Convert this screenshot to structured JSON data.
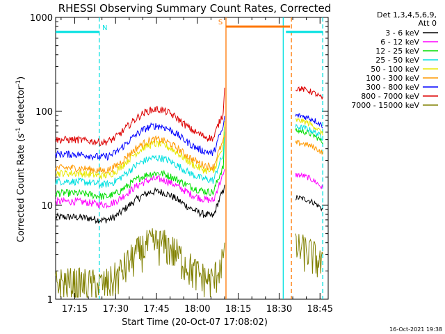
{
  "chart_data": {
    "type": "line",
    "title": "RHESSI Observing Summary Count Rates, Corrected",
    "xlabel": "Start Time (20-Oct-07 17:08:02)",
    "ylabel_main": "Corrected Count Rate (s",
    "ylabel_sup1": "-1",
    "ylabel_mid": " detector",
    "ylabel_sup2": "-1",
    "ylabel_end": ")",
    "yscale": "log",
    "ylim": [
      1,
      1000
    ],
    "xlim_min": [
      0,
      100
    ],
    "x_ticks": [
      {
        "label": "17:15",
        "min": 7
      },
      {
        "label": "17:30",
        "min": 22
      },
      {
        "label": "17:45",
        "min": 37
      },
      {
        "label": "18:00",
        "min": 52
      },
      {
        "label": "18:15",
        "min": 67
      },
      {
        "label": "18:30",
        "min": 82
      },
      {
        "label": "18:45",
        "min": 97
      }
    ],
    "y_ticks": [
      {
        "label": "1",
        "value": 1
      },
      {
        "label": "10",
        "value": 10
      },
      {
        "label": "100",
        "value": 100
      },
      {
        "label": "1000",
        "value": 1000
      }
    ],
    "legend_header": [
      "Det 1,3,4,5,6,9,",
      "Att 0"
    ],
    "legend_position": "right",
    "series": [
      {
        "name": "3 - 6 keV",
        "color": "#000000",
        "base": 7.5,
        "peak": 14,
        "end": 12,
        "g1": 12,
        "g2": 9
      },
      {
        "name": "6 - 12 keV",
        "color": "#ff00ff",
        "base": 11,
        "peak": 19,
        "end": 20,
        "g1": 21,
        "g2": 15
      },
      {
        "name": "12 - 25 keV",
        "color": "#00dd00",
        "base": 13.5,
        "peak": 22,
        "end": 58,
        "g1": 62,
        "g2": 47
      },
      {
        "name": "25 - 50 keV",
        "color": "#00e0e0",
        "base": 18,
        "peak": 32,
        "end": 65,
        "g1": 68,
        "g2": 52
      },
      {
        "name": "50 - 100 keV",
        "color": "#e8e800",
        "base": 22,
        "peak": 45,
        "end": 75,
        "g1": 80,
        "g2": 57
      },
      {
        "name": "100 - 300 keV",
        "color": "#ff9900",
        "base": 25,
        "peak": 50,
        "end": 43,
        "g1": 46,
        "g2": 36
      },
      {
        "name": "300 - 800 keV",
        "color": "#0000ff",
        "base": 35,
        "peak": 70,
        "end": 85,
        "g1": 90,
        "g2": 70
      },
      {
        "name": "800 - 7000 keV",
        "color": "#dd0000",
        "base": 50,
        "peak": 105,
        "end": 170,
        "g1": 175,
        "g2": 135
      },
      {
        "name": "7000 - 15000 keV",
        "color": "#808000",
        "base": 1.5,
        "peak": 4,
        "end": 3,
        "g1": 3.5,
        "g2": 2.2
      }
    ],
    "flags": [
      {
        "label": "N",
        "color": "#00e0e0",
        "start_min": 0,
        "end_min": 16,
        "value": 700
      },
      {
        "label": "S",
        "color": "#ff7700",
        "start_min": 62.5,
        "end_min": 86,
        "value": 800
      },
      {
        "label": "",
        "color": "#00e0e0",
        "start_min": 84.5,
        "end_min": 98,
        "value": 700
      }
    ],
    "markers": [
      {
        "min": 16,
        "color": "#00e0e0",
        "style": "dashed"
      },
      {
        "min": 62.5,
        "color": "#ff7700",
        "style": "solid"
      },
      {
        "min": 83.5,
        "color": "#00e0e0",
        "style": "solid"
      },
      {
        "min": 86.5,
        "color": "#ff7700",
        "style": "dashed"
      },
      {
        "min": 98,
        "color": "#00e0e0",
        "style": "dashed"
      }
    ],
    "data_gaps": [
      [
        63,
        88
      ]
    ]
  },
  "footer": {
    "timestamp": "16-Oct-2021 19:38"
  }
}
